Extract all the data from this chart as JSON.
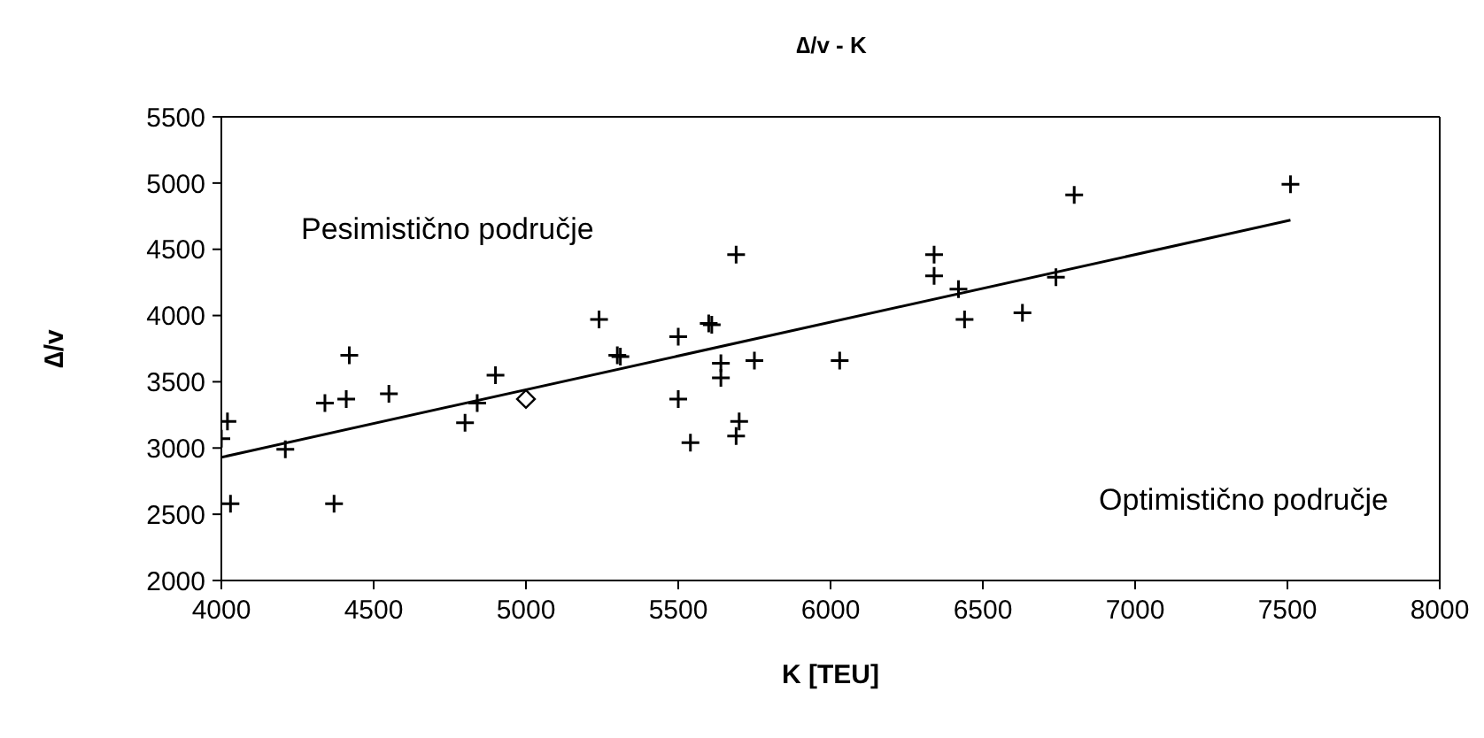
{
  "chart_data": {
    "type": "scatter",
    "title": "∆/v - K",
    "xlabel": "K [TEU]",
    "ylabel": "∆/v",
    "annotations": [
      "Pesimistično područje",
      "Optimistično područje"
    ],
    "xlim": [
      4000,
      8000
    ],
    "xticks": [
      4000,
      4500,
      5000,
      5500,
      6000,
      6500,
      7000,
      7500,
      8000
    ],
    "ylim": [
      2000,
      5500
    ],
    "yticks": [
      2000,
      2500,
      3000,
      3500,
      4000,
      4500,
      5000,
      5500
    ],
    "grid": false,
    "legend": false,
    "series": [
      {
        "marker": "cross",
        "color": "#000000",
        "x": [
          4000,
          4020,
          4030,
          4210,
          4340,
          4410,
          4420,
          4370,
          4550,
          4800,
          4840,
          4900,
          5240,
          5300,
          5310,
          5500,
          5500,
          5540,
          5600,
          5610,
          5640,
          5640,
          5750,
          5690,
          5700,
          5690,
          6030,
          6340,
          6340,
          6420,
          6440,
          6630,
          6740,
          6800,
          7510
        ],
        "values": [
          3070,
          3200,
          2580,
          2990,
          3340,
          3370,
          3700,
          2580,
          3410,
          3190,
          3340,
          3550,
          3970,
          3700,
          3690,
          3840,
          3370,
          3040,
          3940,
          3930,
          3640,
          3530,
          3660,
          4460,
          3200,
          3090,
          3660,
          4460,
          4300,
          4200,
          3970,
          4020,
          4290,
          4910,
          4990
        ]
      },
      {
        "marker": "diamond",
        "color": "#000000",
        "x": [
          5000
        ],
        "values": [
          3370
        ]
      },
      {
        "type": "line",
        "marker": "none",
        "color": "#000000",
        "x": [
          4000,
          7510
        ],
        "values": [
          2930,
          4720
        ]
      }
    ]
  }
}
